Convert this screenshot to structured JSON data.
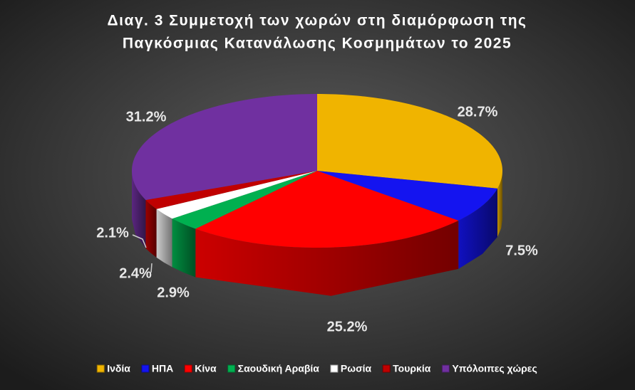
{
  "chart_data": {
    "type": "pie",
    "title": [
      "Διαγ. 3   Συμμετοχή των χωρών στη διαμόρφωση της",
      "Παγκόσμιας Κατανάλωσης Κοσμημάτων το 2025"
    ],
    "categories": [
      "Ινδία",
      "ΗΠΑ",
      "Κίνα",
      "Σαουδική Αραβία",
      "Ρωσία",
      "Τουρκία",
      "Υπόλοιπες χώρες"
    ],
    "values": [
      28.7,
      7.5,
      25.2,
      2.9,
      2.4,
      2.1,
      31.2
    ],
    "value_labels": [
      "28.7%",
      "7.5%",
      "25.2%",
      "2.9%",
      "2.4%",
      "2.1%",
      "31.2%"
    ],
    "colors": [
      "#f0b400",
      "#1414f0",
      "#ff0000",
      "#00b050",
      "#ffffff",
      "#c00000",
      "#7030a0"
    ],
    "legend": "bottom"
  }
}
